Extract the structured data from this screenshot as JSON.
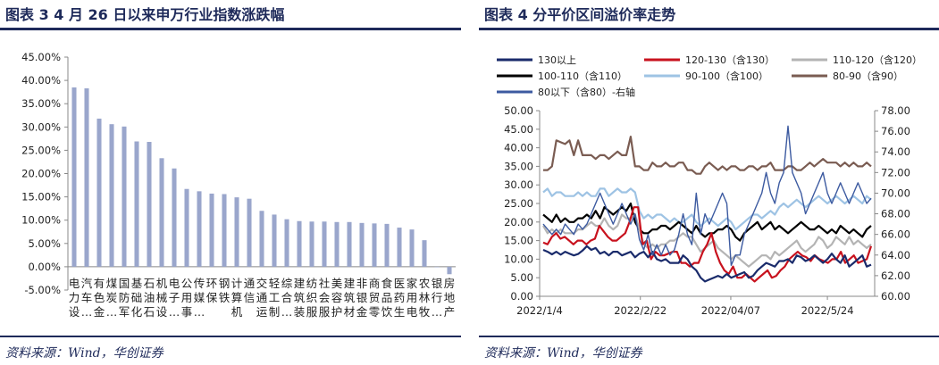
{
  "chart_data": [
    {
      "type": "bar",
      "title": "图表 3   4 月 26 日以来申万行业指数涨跌幅",
      "source": "资料来源：Wind，华创证券",
      "ylim": [
        -5,
        45
      ],
      "yticks": [
        "-5.00%",
        "0.00%",
        "5.00%",
        "10.00%",
        "15.00%",
        "20.00%",
        "25.00%",
        "30.00%",
        "35.00%",
        "40.00%",
        "45.00%"
      ],
      "yticks_values": [
        -5,
        0,
        5,
        10,
        15,
        20,
        25,
        30,
        35,
        40,
        45
      ],
      "label_rows": [
        [
          "电",
          "汽",
          "有",
          "煤",
          "国",
          "基",
          "石",
          "机",
          "电",
          "公",
          "传",
          "环",
          "钢",
          "计",
          "通",
          "交",
          "轻",
          "综",
          "建",
          "纺",
          "社",
          "美",
          "建",
          "非",
          "商",
          "食",
          "医",
          "家",
          "农",
          "银",
          "房"
        ],
        [
          "力",
          "车",
          "色",
          "炭",
          "防",
          "础",
          "油",
          "械",
          "子",
          "用",
          "媒",
          "保",
          "铁",
          "算",
          "信",
          "通",
          "工",
          "合",
          "筑",
          "织",
          "会",
          "容",
          "筑",
          "银",
          "贸",
          "品",
          "药",
          "用",
          "林",
          "行",
          "地"
        ],
        [
          "设",
          "…",
          "金",
          "…",
          "军",
          "化",
          "石",
          "设",
          "…",
          "事",
          "…",
          "",
          "",
          "机",
          "",
          "运",
          "制",
          "…",
          "装",
          "服",
          "服",
          "护",
          "材",
          "金",
          "零",
          "饮",
          "生",
          "电",
          "牧",
          "…",
          "产"
        ]
      ],
      "categories": [
        "电力设备",
        "汽车",
        "有色金属",
        "煤炭",
        "国防军工",
        "基础化工",
        "石油石化",
        "机械设备",
        "电子",
        "公用事业",
        "传媒",
        "环保",
        "钢铁",
        "计算机",
        "通信",
        "交通运输",
        "轻工制造",
        "综合",
        "建筑装饰",
        "纺织服饰",
        "社会服务",
        "美容护理",
        "建筑材料",
        "非银金融",
        "商贸零售",
        "食品饮料",
        "医药生物",
        "家用电器",
        "农林牧渔",
        "银行",
        "房地产"
      ],
      "values": [
        38.5,
        38.3,
        31.8,
        30.6,
        30.1,
        26.9,
        26.8,
        23.3,
        21.1,
        16.7,
        16.2,
        15.7,
        15.6,
        14.9,
        14.6,
        12.0,
        11.2,
        10.2,
        9.8,
        9.7,
        9.7,
        9.6,
        9.6,
        9.4,
        9.3,
        9.2,
        8.4,
        8.0,
        5.7,
        -0.1,
        -1.6
      ],
      "color": "#9aa6cc",
      "grid": false
    },
    {
      "type": "line",
      "title": "图表 4   分平价区间溢价率走势",
      "source": "资料来源：Wind，华创证券",
      "ylim": [
        0,
        50
      ],
      "y2lim": [
        60,
        78
      ],
      "yticks": [
        "0.00",
        "5.00",
        "10.00",
        "15.00",
        "20.00",
        "25.00",
        "30.00",
        "35.00",
        "40.00",
        "45.00",
        "50.00"
      ],
      "y2ticks": [
        "60.00",
        "62.00",
        "64.00",
        "66.00",
        "68.00",
        "70.00",
        "72.00",
        "74.00",
        "76.00",
        "78.00"
      ],
      "xticks": [
        "2022/1/4",
        "2022/2/22",
        "2022/04/07",
        "2022/5/24"
      ],
      "x_range": [
        "2022/1/4",
        "2022/6/16"
      ],
      "grid": false,
      "legend_position": "top",
      "series": [
        {
          "name": "130以上",
          "color": "#1a2b6b",
          "axis": "left",
          "values": [
            12.5,
            12,
            11.3,
            12,
            11.2,
            12,
            11.5,
            11,
            11.4,
            12.3,
            13.5,
            12.5,
            13,
            11.5,
            12,
            11,
            12,
            12,
            11,
            11.5,
            12,
            10.5,
            11.5,
            12,
            10.5,
            12,
            10,
            9.5,
            10,
            9,
            9,
            9,
            11,
            10,
            8,
            7,
            5,
            4,
            4.5,
            5,
            5.5,
            5,
            6,
            5,
            5.5,
            6,
            6.5,
            5,
            5.5,
            7,
            8,
            9,
            8.5,
            8,
            9.5,
            9.5,
            10,
            9,
            11,
            10.5,
            9.5,
            10,
            11,
            10,
            9,
            10,
            11.5,
            10,
            9,
            11,
            8,
            9,
            10,
            11,
            8,
            8.5
          ]
        },
        {
          "name": "120-130（含130）",
          "color": "#c8121e",
          "axis": "left",
          "values": [
            14.5,
            14,
            16,
            17,
            15.5,
            16,
            15,
            14,
            15,
            15,
            14,
            15,
            15.5,
            19,
            17.5,
            16,
            15,
            15,
            16,
            17,
            20,
            24,
            24,
            14,
            15,
            10,
            12,
            11,
            11,
            11.5,
            12,
            12,
            9,
            9,
            8,
            9,
            9,
            12,
            14,
            17,
            12,
            9,
            7,
            6,
            8,
            5,
            5,
            6,
            5,
            4,
            5,
            6,
            7,
            5,
            5.5,
            7,
            8,
            10,
            11,
            12,
            11,
            10.5,
            9.5,
            11,
            10,
            9.5,
            9,
            10,
            10,
            12,
            9,
            10,
            11,
            9,
            9.5,
            10,
            13.5
          ]
        },
        {
          "name": "110-120（含120）",
          "color": "#b4b4b4",
          "axis": "left",
          "values": [
            19,
            17,
            18,
            17,
            18,
            17,
            17,
            17,
            18,
            18,
            19,
            20,
            19,
            19,
            21,
            19,
            18,
            19,
            22,
            21,
            21,
            22,
            18,
            14,
            13,
            14,
            13,
            14,
            14,
            15,
            15,
            16,
            17,
            16,
            16,
            14,
            12,
            13,
            14,
            15,
            13,
            12,
            11,
            10,
            11,
            10,
            9,
            8,
            9,
            10,
            11,
            11,
            10,
            12,
            11,
            12,
            13,
            14,
            15,
            13,
            12,
            13,
            14,
            16,
            15,
            13,
            14,
            16,
            15,
            14,
            16,
            14,
            15,
            14,
            13,
            14
          ]
        },
        {
          "name": "100-110（含110）",
          "color": "#000000",
          "axis": "left",
          "values": [
            22,
            21,
            20,
            22,
            20,
            21,
            20,
            20,
            21,
            21,
            22,
            21,
            23,
            21,
            24,
            23,
            22,
            23,
            24,
            23,
            25,
            20,
            18,
            17,
            17,
            18,
            18,
            19,
            19,
            18,
            19,
            20,
            19,
            18,
            17,
            19,
            17,
            16,
            17,
            17,
            18,
            18,
            19,
            18,
            16,
            15,
            17,
            18,
            19,
            20,
            18,
            19,
            20,
            18,
            19,
            18,
            17,
            18,
            19,
            20,
            19,
            18,
            18,
            19,
            18,
            17,
            18,
            17,
            19,
            18,
            17,
            18,
            17,
            16,
            18,
            19
          ]
        },
        {
          "name": "90-100（含100）",
          "color": "#9ec3e4",
          "axis": "left",
          "values": [
            28,
            29,
            27,
            28,
            28,
            27,
            27,
            27,
            28,
            27,
            28,
            27,
            27,
            29,
            29,
            27,
            28,
            29,
            28,
            28,
            29,
            28,
            23,
            21,
            22,
            21,
            22,
            22,
            21,
            20,
            21,
            20,
            20,
            21,
            22,
            20,
            19,
            20,
            21,
            20,
            19,
            20,
            21,
            20,
            18,
            19,
            20,
            21,
            22,
            22,
            21,
            22,
            23,
            22,
            24,
            25,
            24,
            25,
            26,
            25,
            24,
            25,
            26,
            27,
            26,
            25,
            26,
            27,
            26,
            25,
            26,
            27,
            26,
            25,
            27,
            26
          ]
        },
        {
          "name": "80-90（含90）",
          "color": "#7a5c52",
          "axis": "left",
          "values": [
            34,
            34,
            35,
            42,
            41.5,
            41,
            42,
            38,
            42,
            38,
            38,
            38,
            37,
            38,
            38,
            37,
            38,
            39,
            38,
            38,
            43,
            35,
            35,
            34,
            34,
            36,
            35,
            35,
            36,
            35,
            35,
            36,
            36,
            34,
            34,
            33,
            33,
            35,
            36,
            35,
            34,
            35,
            34,
            35,
            35,
            34,
            34,
            35,
            35,
            34,
            35,
            35,
            36,
            34,
            34,
            34,
            35,
            35,
            34,
            34,
            35,
            36,
            35,
            36,
            37,
            36,
            36,
            36,
            35,
            36,
            35,
            36,
            35,
            35,
            36,
            35
          ]
        },
        {
          "name": "80以下（含80）-右轴",
          "color": "#3c5aa0",
          "axis": "right",
          "values": [
            67,
            66.5,
            66,
            66.5,
            66,
            67,
            66.5,
            66,
            67,
            66.5,
            67,
            68,
            69,
            70,
            69,
            68,
            67,
            68,
            69,
            68,
            67,
            68,
            65.5,
            64.5,
            66,
            64,
            65,
            64,
            65,
            64,
            64.5,
            66,
            68,
            66,
            65,
            70,
            66,
            68,
            67,
            68,
            69,
            70,
            69,
            63,
            64,
            64,
            66,
            67,
            68,
            69,
            70,
            72,
            70,
            69,
            71,
            72,
            76.5,
            72,
            71,
            70,
            68,
            69,
            70,
            71,
            72,
            70,
            69,
            70,
            71,
            70,
            69,
            70,
            71,
            70,
            69,
            69.5
          ]
        }
      ]
    }
  ]
}
